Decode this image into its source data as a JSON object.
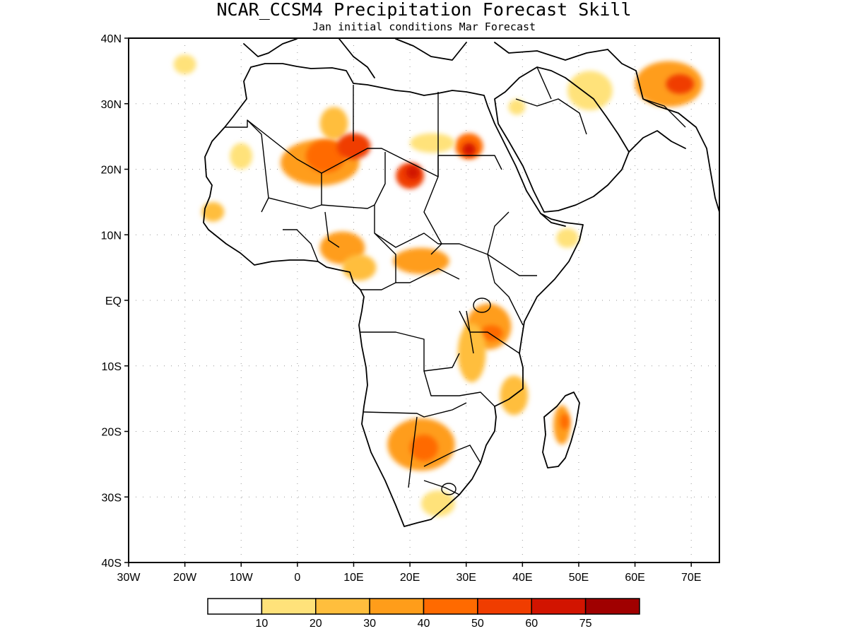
{
  "title": "NCAR_CCSM4 Precipitation Forecast Skill",
  "subtitle": "Jan initial conditions  Mar Forecast",
  "lat_ticks": [
    "40N",
    "30N",
    "20N",
    "10N",
    "EQ",
    "10S",
    "20S",
    "30S",
    "40S"
  ],
  "lon_ticks": [
    "30W",
    "20W",
    "10W",
    "0",
    "10E",
    "20E",
    "30E",
    "40E",
    "50E",
    "60E",
    "70E"
  ],
  "colorbar": {
    "colors": [
      "#ffffff",
      "#ffe27a",
      "#ffbe3d",
      "#ff9d1a",
      "#ff6a00",
      "#f03d00",
      "#d21400",
      "#a00000"
    ],
    "labels": [
      "10",
      "20",
      "30",
      "40",
      "50",
      "60",
      "75"
    ]
  },
  "skill_regions": [
    {
      "lon": -20.0,
      "lat": 36.0,
      "level": 1,
      "rx": 2.0,
      "ry": 1.5
    },
    {
      "lon": 6.5,
      "lat": 27.0,
      "level": 2,
      "rx": 2.5,
      "ry": 2.5
    },
    {
      "lon": 4.0,
      "lat": 21.0,
      "level": 3,
      "rx": 7.0,
      "ry": 3.5
    },
    {
      "lon": 5.0,
      "lat": 22.0,
      "level": 4,
      "rx": 3.5,
      "ry": 2.5
    },
    {
      "lon": 10.0,
      "lat": 23.5,
      "level": 5,
      "rx": 3.0,
      "ry": 2.0
    },
    {
      "lon": 20.0,
      "lat": 19.0,
      "level": 5,
      "rx": 2.5,
      "ry": 2.0
    },
    {
      "lon": 20.5,
      "lat": 19.5,
      "level": 6,
      "rx": 1.2,
      "ry": 1.0
    },
    {
      "lon": 30.5,
      "lat": 23.5,
      "level": 4,
      "rx": 2.5,
      "ry": 2.0
    },
    {
      "lon": 30.5,
      "lat": 23.0,
      "level": 6,
      "rx": 1.2,
      "ry": 1.0
    },
    {
      "lon": 24.0,
      "lat": 24.0,
      "level": 1,
      "rx": 4.0,
      "ry": 1.5
    },
    {
      "lon": -10.0,
      "lat": 22.0,
      "level": 1,
      "rx": 2.0,
      "ry": 2.0
    },
    {
      "lon": -15.0,
      "lat": 13.5,
      "level": 2,
      "rx": 2.0,
      "ry": 1.5
    },
    {
      "lon": 8.0,
      "lat": 8.0,
      "level": 3,
      "rx": 4.0,
      "ry": 2.5
    },
    {
      "lon": 11.0,
      "lat": 5.0,
      "level": 2,
      "rx": 3.0,
      "ry": 2.0
    },
    {
      "lon": 22.0,
      "lat": 6.0,
      "level": 3,
      "rx": 5.0,
      "ry": 2.0
    },
    {
      "lon": 34.0,
      "lat": -4.0,
      "level": 3,
      "rx": 4.0,
      "ry": 3.5
    },
    {
      "lon": 34.5,
      "lat": -5.0,
      "level": 4,
      "rx": 2.0,
      "ry": 1.2
    },
    {
      "lon": 31.0,
      "lat": -8.0,
      "level": 2,
      "rx": 2.5,
      "ry": 4.5
    },
    {
      "lon": 38.5,
      "lat": -14.5,
      "level": 2,
      "rx": 2.5,
      "ry": 3.0
    },
    {
      "lon": 22.0,
      "lat": -22.0,
      "level": 3,
      "rx": 6.0,
      "ry": 4.0
    },
    {
      "lon": 22.5,
      "lat": -22.5,
      "level": 4,
      "rx": 2.5,
      "ry": 2.0
    },
    {
      "lon": 25.0,
      "lat": -31.0,
      "level": 1,
      "rx": 3.0,
      "ry": 2.0
    },
    {
      "lon": 47.0,
      "lat": -19.0,
      "level": 3,
      "rx": 1.5,
      "ry": 3.0
    },
    {
      "lon": 47.5,
      "lat": -18.5,
      "level": 4,
      "rx": 0.8,
      "ry": 1.2
    },
    {
      "lon": 52.0,
      "lat": 32.0,
      "level": 1,
      "rx": 4.0,
      "ry": 3.0
    },
    {
      "lon": 66.0,
      "lat": 33.0,
      "level": 3,
      "rx": 6.0,
      "ry": 3.5
    },
    {
      "lon": 68.0,
      "lat": 33.0,
      "level": 5,
      "rx": 2.5,
      "ry": 1.5
    },
    {
      "lon": 39.0,
      "lat": 29.5,
      "level": 1,
      "rx": 1.5,
      "ry": 1.2
    },
    {
      "lon": 48.0,
      "lat": 9.5,
      "level": 1,
      "rx": 2.0,
      "ry": 1.5
    }
  ]
}
